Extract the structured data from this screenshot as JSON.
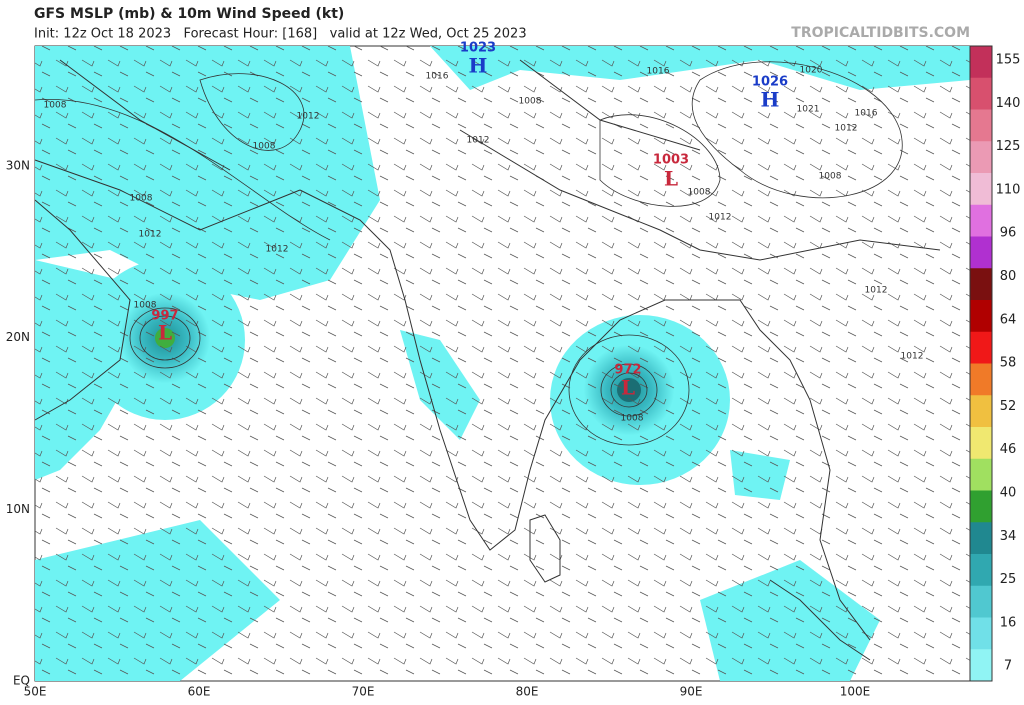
{
  "header": {
    "title": "GFS MSLP (mb) & 10m Wind Speed (kt)",
    "subtitle": "Init: 12z Oct 18 2023   Forecast Hour: [168]   valid at 12z Wed, Oct 25 2023",
    "credit": "TROPICALTIDBITS.COM"
  },
  "map": {
    "longitude_labels": [
      "50E",
      "60E",
      "70E",
      "80E",
      "90E",
      "100E"
    ],
    "latitude_labels": [
      "30N",
      "20N",
      "10N",
      "EQ"
    ],
    "pressure_centers": [
      {
        "symbol": "H",
        "value": "1023"
      },
      {
        "symbol": "H",
        "value": "1026"
      },
      {
        "symbol": "L",
        "value": "1003"
      },
      {
        "symbol": "L",
        "value": "997"
      },
      {
        "symbol": "L",
        "value": "972"
      }
    ],
    "isobar_labels": [
      "1008",
      "1016",
      "1016",
      "1020",
      "1012",
      "1008",
      "1012",
      "1008",
      "1008",
      "1012",
      "1012",
      "1008",
      "1021",
      "1012",
      "1016",
      "1008",
      "1008",
      "1012",
      "1012",
      "1012",
      "1008"
    ]
  },
  "colorbar": {
    "labels": [
      "155",
      "140",
      "125",
      "110",
      "96",
      "80",
      "64",
      "58",
      "52",
      "46",
      "40",
      "34",
      "25",
      "16",
      "7"
    ]
  }
}
